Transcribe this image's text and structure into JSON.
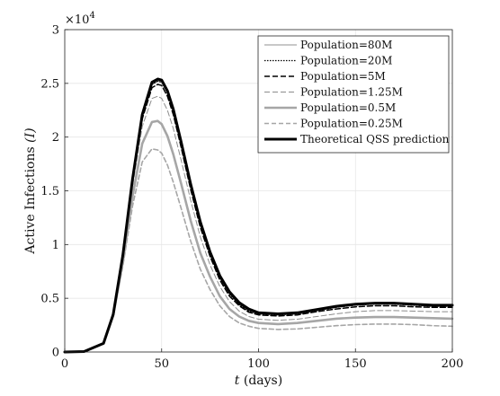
{
  "chart_data": {
    "type": "line",
    "xlabel_var": "t",
    "xlabel_unit": "(days)",
    "ylabel_text": "Active Infections",
    "ylabel_var": "(I)",
    "y_multiplier": "×10",
    "y_multiplier_exp": "4",
    "xlim": [
      0,
      200
    ],
    "ylim": [
      0,
      3
    ],
    "x_ticks": [
      0,
      50,
      100,
      150,
      200
    ],
    "x_tick_labels": [
      "0",
      "50",
      "100",
      "150",
      "200"
    ],
    "y_ticks": [
      0,
      0.5,
      1,
      1.5,
      2,
      2.5,
      3
    ],
    "y_tick_labels": [
      "0",
      "0.5",
      "1",
      "1.5",
      "2",
      "2.5",
      "3"
    ],
    "grid": true,
    "legend_position": "top-right",
    "series": [
      {
        "name": "Population=80M",
        "color": "#a6a6a6",
        "dash": "",
        "width": 1.2,
        "x": [
          0,
          10,
          20,
          25,
          30,
          35,
          40,
          45,
          48,
          50,
          53,
          56,
          60,
          65,
          70,
          75,
          80,
          85,
          90,
          95,
          100,
          110,
          120,
          130,
          140,
          150,
          160,
          170,
          180,
          190,
          200
        ],
        "y": [
          0,
          0.004,
          0.08,
          0.35,
          0.9,
          1.6,
          2.2,
          2.5,
          2.53,
          2.52,
          2.42,
          2.25,
          1.95,
          1.55,
          1.2,
          0.92,
          0.7,
          0.55,
          0.45,
          0.39,
          0.36,
          0.35,
          0.36,
          0.39,
          0.42,
          0.44,
          0.45,
          0.45,
          0.44,
          0.43,
          0.43
        ]
      },
      {
        "name": "Population=20M",
        "color": "#000000",
        "dash": "1.5,1.5",
        "width": 1.2,
        "x": [
          0,
          10,
          20,
          25,
          30,
          35,
          40,
          45,
          48,
          50,
          53,
          56,
          60,
          65,
          70,
          75,
          80,
          85,
          90,
          95,
          100,
          110,
          120,
          130,
          140,
          150,
          160,
          170,
          180,
          190,
          200
        ],
        "y": [
          0,
          0.004,
          0.08,
          0.35,
          0.9,
          1.59,
          2.19,
          2.49,
          2.52,
          2.51,
          2.41,
          2.24,
          1.94,
          1.54,
          1.19,
          0.91,
          0.69,
          0.54,
          0.44,
          0.38,
          0.355,
          0.345,
          0.355,
          0.385,
          0.415,
          0.435,
          0.445,
          0.445,
          0.435,
          0.425,
          0.425
        ]
      },
      {
        "name": "Population=5M",
        "color": "#000000",
        "dash": "6,3",
        "width": 1.5,
        "x": [
          0,
          10,
          20,
          25,
          30,
          35,
          40,
          45,
          48,
          50,
          53,
          56,
          60,
          65,
          70,
          75,
          80,
          85,
          90,
          95,
          100,
          110,
          120,
          130,
          140,
          150,
          160,
          170,
          180,
          190,
          200
        ],
        "y": [
          0,
          0.004,
          0.08,
          0.35,
          0.89,
          1.58,
          2.17,
          2.46,
          2.49,
          2.48,
          2.38,
          2.21,
          1.91,
          1.51,
          1.16,
          0.89,
          0.67,
          0.52,
          0.43,
          0.37,
          0.345,
          0.335,
          0.345,
          0.375,
          0.4,
          0.42,
          0.43,
          0.43,
          0.42,
          0.415,
          0.415
        ]
      },
      {
        "name": "Population=1.25M",
        "color": "#8c8c8c",
        "dash": "6,3",
        "width": 1.0,
        "x": [
          0,
          10,
          20,
          25,
          30,
          35,
          40,
          45,
          48,
          50,
          53,
          56,
          60,
          65,
          70,
          75,
          80,
          85,
          90,
          95,
          100,
          110,
          120,
          130,
          140,
          150,
          160,
          170,
          180,
          190,
          200
        ],
        "y": [
          0,
          0.004,
          0.08,
          0.35,
          0.87,
          1.54,
          2.1,
          2.36,
          2.38,
          2.36,
          2.25,
          2.08,
          1.79,
          1.41,
          1.07,
          0.81,
          0.61,
          0.47,
          0.38,
          0.33,
          0.305,
          0.295,
          0.305,
          0.33,
          0.355,
          0.375,
          0.385,
          0.385,
          0.38,
          0.375,
          0.375
        ]
      },
      {
        "name": "Population=0.5M",
        "color": "#a6a6a6",
        "dash": "",
        "width": 2.6,
        "x": [
          0,
          10,
          20,
          25,
          30,
          35,
          40,
          45,
          48,
          50,
          53,
          56,
          60,
          65,
          70,
          75,
          80,
          85,
          90,
          95,
          100,
          110,
          120,
          130,
          140,
          150,
          160,
          170,
          180,
          190,
          200
        ],
        "y": [
          0,
          0.004,
          0.08,
          0.34,
          0.84,
          1.45,
          1.94,
          2.14,
          2.15,
          2.12,
          2.01,
          1.84,
          1.57,
          1.22,
          0.92,
          0.7,
          0.52,
          0.4,
          0.33,
          0.29,
          0.27,
          0.26,
          0.27,
          0.29,
          0.31,
          0.32,
          0.325,
          0.325,
          0.32,
          0.315,
          0.31
        ]
      },
      {
        "name": "Population=0.25M",
        "color": "#a6a6a6",
        "dash": "5,3",
        "width": 1.6,
        "x": [
          0,
          10,
          20,
          25,
          30,
          35,
          40,
          45,
          48,
          50,
          53,
          56,
          60,
          65,
          70,
          75,
          80,
          85,
          90,
          95,
          100,
          110,
          120,
          130,
          140,
          150,
          160,
          170,
          180,
          190,
          200
        ],
        "y": [
          0,
          0.004,
          0.08,
          0.33,
          0.8,
          1.36,
          1.77,
          1.89,
          1.88,
          1.85,
          1.74,
          1.58,
          1.34,
          1.03,
          0.77,
          0.58,
          0.43,
          0.33,
          0.27,
          0.24,
          0.22,
          0.21,
          0.215,
          0.23,
          0.245,
          0.255,
          0.26,
          0.26,
          0.255,
          0.245,
          0.24
        ]
      },
      {
        "name": "Theoretical QSS prediction",
        "color": "#000000",
        "dash": "",
        "width": 3.0,
        "x": [
          0,
          10,
          20,
          25,
          30,
          35,
          40,
          45,
          48,
          50,
          53,
          56,
          60,
          65,
          70,
          75,
          80,
          85,
          90,
          95,
          100,
          110,
          120,
          130,
          140,
          150,
          160,
          170,
          180,
          190,
          200
        ],
        "y": [
          0,
          0.004,
          0.08,
          0.35,
          0.9,
          1.61,
          2.21,
          2.51,
          2.54,
          2.53,
          2.43,
          2.26,
          1.96,
          1.56,
          1.21,
          0.93,
          0.71,
          0.56,
          0.46,
          0.4,
          0.365,
          0.355,
          0.365,
          0.395,
          0.425,
          0.445,
          0.455,
          0.455,
          0.445,
          0.435,
          0.435
        ]
      }
    ]
  }
}
